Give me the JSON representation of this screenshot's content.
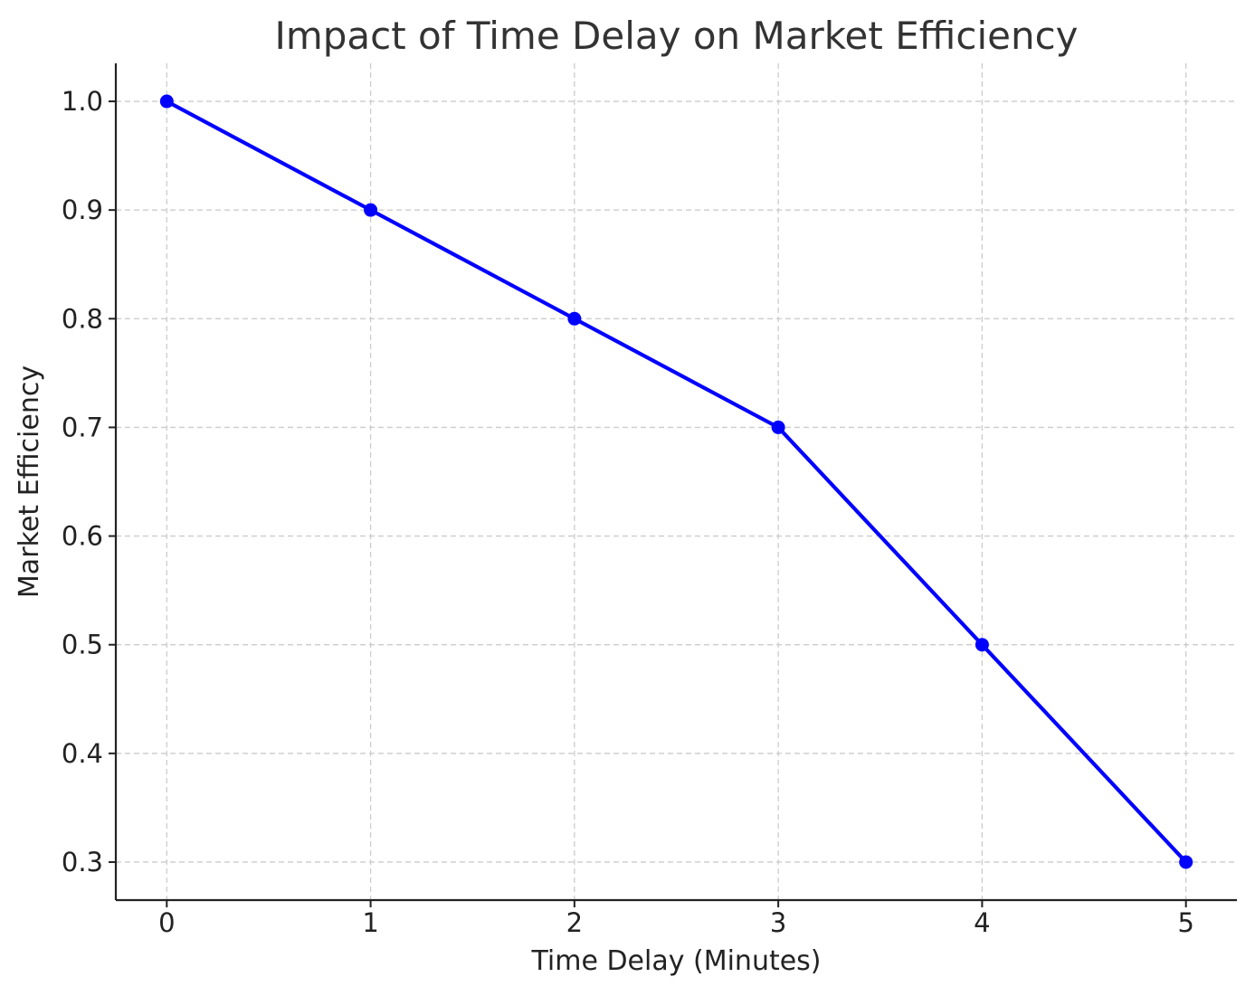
{
  "chart_data": {
    "type": "line",
    "title": "Impact of Time Delay on Market Efficiency",
    "xlabel": "Time Delay (Minutes)",
    "ylabel": "Market Efficiency",
    "x": [
      0,
      1,
      2,
      3,
      4,
      5
    ],
    "series": [
      {
        "values": [
          1.0,
          0.9,
          0.8,
          0.7,
          0.5,
          0.3
        ],
        "color": "#0000ff",
        "marker": "circle"
      }
    ],
    "xticks": [
      "0",
      "1",
      "2",
      "3",
      "4",
      "5"
    ],
    "yticks": [
      "1.0",
      "0.9",
      "0.8",
      "0.7",
      "0.6",
      "0.5",
      "0.4",
      "0.3"
    ],
    "ytick_values": [
      1.0,
      0.9,
      0.8,
      0.7,
      0.6,
      0.5,
      0.4,
      0.3
    ],
    "xlim": [
      -0.25,
      5.25
    ],
    "ylim": [
      0.265,
      1.035
    ],
    "grid": true,
    "grid_style": "dashed",
    "legend": "none"
  }
}
